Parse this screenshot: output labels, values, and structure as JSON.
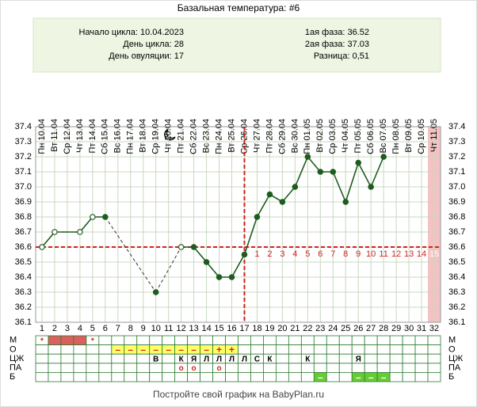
{
  "chart_data": {
    "type": "line",
    "title": "Базальная температура: #6",
    "info_left": [
      "Начало цикла: 10.04.2023",
      "День цикла: 28",
      "День овуляции: 17"
    ],
    "info_right": [
      "1ая фаза: 36.52",
      "2ая фаза: 37.03",
      "Разница: 0,51"
    ],
    "categories": [
      "Пн 10.04",
      "Вт 11.04",
      "Ср 12.04",
      "Чт 13.04",
      "Пт 14.04",
      "Сб 15.04",
      "Вс 16.04",
      "Пн 17.04",
      "Вт 18.04",
      "Ср 19.04",
      "Чт 20.04",
      "Пт 21.04",
      "Сб 22.04",
      "Вс 23.04",
      "Пн 24.04",
      "Вт 25.04",
      "Ср 26.04",
      "Чт 27.04",
      "Пт 28.04",
      "Сб 29.04",
      "Вс 30.04",
      "Пн 01.05",
      "Вт 02.05",
      "Ср 03.05",
      "Чт 04.05",
      "Пт 05.05",
      "Сб 06.05",
      "Вс 07.05",
      "Пн 08.05",
      "Вт 09.05",
      "Ср 10.05",
      "Чт 11.05"
    ],
    "days": [
      1,
      2,
      3,
      4,
      5,
      6,
      7,
      8,
      9,
      10,
      11,
      12,
      13,
      14,
      15,
      16,
      17,
      18,
      19,
      20,
      21,
      22,
      23,
      24,
      25,
      26,
      27,
      28,
      29,
      30,
      31,
      32
    ],
    "series": [
      {
        "color": "#1e5c1e",
        "values": [
          36.6,
          36.7,
          null,
          36.7,
          36.8,
          36.8,
          null,
          null,
          null,
          36.3,
          null,
          36.6,
          36.6,
          36.5,
          36.4,
          36.4,
          36.55,
          36.8,
          36.95,
          36.9,
          37.0,
          37.2,
          37.1,
          37.1,
          36.9,
          37.16,
          37.0,
          37.2,
          null,
          null,
          null,
          null
        ],
        "point_style": [
          "hollow",
          "hollow",
          null,
          "hollow",
          "hollow",
          "filled",
          null,
          null,
          null,
          "filled",
          null,
          "hollow",
          "filled",
          "filled",
          "filled",
          "filled",
          "filled",
          "filled",
          "filled",
          "filled",
          "filled",
          "filled",
          "filled",
          "filled",
          "filled",
          "filled",
          "filled",
          "filled",
          null,
          null,
          null,
          null
        ],
        "line_style": [
          null,
          "solid",
          null,
          "solid",
          "solid",
          "solid",
          null,
          null,
          null,
          "dashed",
          null,
          "dashed",
          "solid",
          "solid",
          "solid",
          "solid",
          "solid",
          "solid",
          "solid",
          "solid",
          "solid",
          "solid",
          "solid",
          "solid",
          "solid",
          "solid",
          "solid",
          "solid",
          null,
          null,
          null,
          null
        ]
      }
    ],
    "ylim": [
      36.1,
      37.4
    ],
    "yticks": [
      36.1,
      36.2,
      36.3,
      36.4,
      36.5,
      36.6,
      36.7,
      36.8,
      36.9,
      {
        "value": 37.0,
        "label": "37.0"
      },
      37.1,
      37.2,
      37.3,
      37.4
    ],
    "grid": true,
    "coverline": 36.6,
    "ovulation_day": 17,
    "marker_color": "#d62020",
    "luteal_days": [
      1,
      2,
      3,
      4,
      5,
      6,
      7,
      8,
      9,
      10,
      11,
      12,
      13,
      14,
      15
    ],
    "highlight_day": 32,
    "highlight_color": "#f4c2c2",
    "rows": [
      {
        "name": "М",
        "text_color": "#d62020",
        "cells": [
          {
            "text": "*"
          },
          {
            "fill": "#d9605e"
          },
          {
            "fill": "#d9605e"
          },
          {
            "fill": "#d9605e"
          },
          {
            "text": "*"
          },
          null,
          null,
          null,
          null,
          null,
          null,
          null,
          null,
          null,
          null,
          null,
          null,
          null,
          null,
          null,
          null,
          null,
          null,
          null,
          null,
          null,
          null,
          null,
          null,
          null,
          null,
          null
        ]
      },
      {
        "name": "О",
        "text_color": "#d62020",
        "cells": [
          null,
          null,
          null,
          null,
          null,
          null,
          {
            "fill": "#ffff66",
            "text": "–"
          },
          {
            "fill": "#ffff66",
            "text": "–"
          },
          {
            "fill": "#ffff66",
            "text": "–"
          },
          {
            "fill": "#ffff66",
            "text": "–"
          },
          {
            "fill": "#ffff66",
            "text": "–"
          },
          {
            "fill": "#ffff66",
            "text": "–"
          },
          {
            "fill": "#ffff66",
            "text": "–"
          },
          {
            "fill": "#ffff66",
            "text": "–"
          },
          {
            "fill": "#ffff66",
            "text": "+"
          },
          {
            "fill": "#ffff66",
            "text": "+"
          },
          null,
          null,
          null,
          null,
          null,
          null,
          null,
          null,
          null,
          null,
          null,
          null,
          null,
          null,
          null,
          null
        ]
      },
      {
        "name": "ЦЖ",
        "text_color": "#000000",
        "cells": [
          null,
          null,
          null,
          null,
          null,
          null,
          null,
          null,
          null,
          {
            "text": "В"
          },
          null,
          {
            "text": "К"
          },
          {
            "text": "Я"
          },
          {
            "text": "Л"
          },
          {
            "text": "Л"
          },
          {
            "text": "Л"
          },
          {
            "text": "Л"
          },
          {
            "text": "С"
          },
          {
            "text": "К"
          },
          null,
          null,
          {
            "text": "К"
          },
          null,
          null,
          null,
          {
            "text": "Я"
          },
          null,
          null,
          null,
          null,
          null,
          null
        ]
      },
      {
        "name": "ПА",
        "text_color": "#d62020",
        "cells": [
          null,
          null,
          null,
          null,
          null,
          null,
          null,
          null,
          null,
          null,
          null,
          {
            "text": "о"
          },
          {
            "text": "о"
          },
          null,
          {
            "text": "о"
          },
          null,
          null,
          null,
          null,
          null,
          null,
          null,
          null,
          null,
          null,
          null,
          null,
          null,
          null,
          null,
          null,
          null
        ]
      },
      {
        "name": "Б",
        "text_color": "#ffffff",
        "cells": [
          null,
          null,
          null,
          null,
          null,
          null,
          null,
          null,
          null,
          null,
          null,
          null,
          null,
          null,
          null,
          null,
          null,
          null,
          null,
          null,
          null,
          null,
          {
            "fill": "#66cc33",
            "text": "–"
          },
          null,
          null,
          {
            "fill": "#66cc33",
            "text": "–"
          },
          {
            "fill": "#66cc33",
            "text": "–"
          },
          {
            "fill": "#66cc33",
            "text": "–"
          },
          null,
          null,
          null,
          null
        ]
      }
    ],
    "footer": "Постройте свой график на BabyPlan.ru"
  }
}
